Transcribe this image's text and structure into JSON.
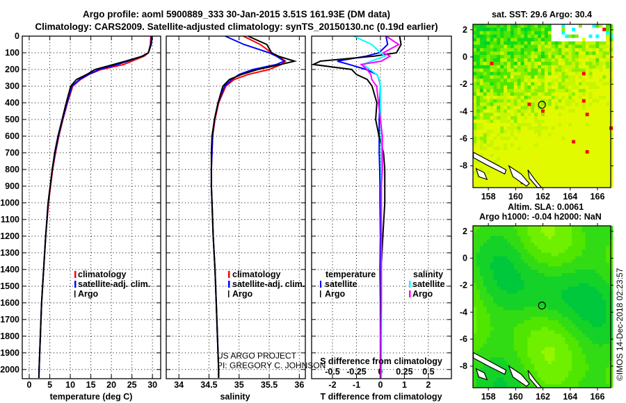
{
  "title": {
    "line1": "Argo profile: aoml 5900889_333 30-Jan-2015 3.51S 161.93E (DM data)",
    "line2": "Climatology: CARS2009. Satellite-adjusted climatology: synTS_20150130.nc (0.19d earlier)"
  },
  "annotations": {
    "project": "US ARGO PROJECT",
    "pi": "PI: GREGORY C. JOHNSON",
    "credit": "©IMOS 14-Dec-2018 02:23:57"
  },
  "colors": {
    "climatology": "#ff0000",
    "satellite": "#0000ff",
    "argo": "#000000",
    "sal_satellite": "#00ffff",
    "sal_argo": "#ff00ff"
  },
  "chart_data": [
    {
      "type": "line",
      "name": "temperature-panel",
      "xlabel": "temperature (deg C)",
      "ylabel": "",
      "xlim": [
        -1.7,
        32
      ],
      "ylim": [
        0,
        2055
      ],
      "y_inverted": true,
      "xticks": [
        "0",
        "5",
        "10",
        "15",
        "20",
        "25",
        "30"
      ],
      "yticks": [
        "0",
        "100",
        "200",
        "300",
        "400",
        "500",
        "600",
        "700",
        "800",
        "900",
        "1000",
        "1100",
        "1200",
        "1300",
        "1400",
        "1500",
        "1600",
        "1700",
        "1800",
        "1900",
        "2000"
      ],
      "grid": true,
      "legend": {
        "placement": "lower-middle",
        "entries": [
          "climatology",
          "satellite-adj. clim.",
          "Argo"
        ]
      },
      "depth": [
        0,
        50,
        100,
        120,
        150,
        170,
        200,
        230,
        260,
        300,
        400,
        500,
        600,
        700,
        800,
        900,
        1000,
        1200,
        1400,
        1600,
        1800,
        2000,
        2050
      ],
      "series": [
        {
          "name": "climatology",
          "color": "#ff0000",
          "values": [
            29.6,
            29.5,
            29.0,
            28.0,
            25.0,
            23.0,
            17.5,
            14.5,
            12.5,
            10.6,
            9.3,
            8.2,
            7.2,
            6.4,
            5.7,
            5.2,
            4.7,
            4.0,
            3.5,
            3.0,
            2.7,
            2.4,
            2.35
          ]
        },
        {
          "name": "satellite-adj. clim.",
          "color": "#0000ff",
          "values": [
            29.8,
            29.6,
            29.0,
            27.5,
            24.0,
            21.5,
            17.0,
            14.5,
            12.2,
            10.4,
            9.2,
            8.1,
            7.1,
            6.3,
            5.6,
            5.1,
            4.6,
            4.0,
            3.5,
            3.0,
            2.7,
            2.4,
            2.35
          ]
        },
        {
          "name": "Argo",
          "color": "#000000",
          "values": [
            29.9,
            29.7,
            29.0,
            27.6,
            23.5,
            20.5,
            16.0,
            14.0,
            11.5,
            10.1,
            9.0,
            8.0,
            7.0,
            6.2,
            5.6,
            5.1,
            4.6,
            4.0,
            3.5,
            3.0,
            2.7,
            2.4,
            2.35
          ]
        }
      ]
    },
    {
      "type": "line",
      "name": "salinity-panel",
      "xlabel": "salinity",
      "xlim": [
        33.79,
        36.1
      ],
      "ylim": [
        0,
        2055
      ],
      "y_inverted": true,
      "xticks": [
        "34",
        "34.5",
        "35",
        "35.5",
        "36"
      ],
      "grid": true,
      "legend": {
        "placement": "lower-right",
        "entries": [
          "climatology",
          "satellite-adj. clim.",
          "Argo"
        ]
      },
      "depth": [
        0,
        50,
        100,
        120,
        150,
        170,
        200,
        230,
        260,
        300,
        400,
        500,
        600,
        700,
        800,
        900,
        1000,
        1200,
        1400,
        1600,
        1800,
        2000,
        2050
      ],
      "series": [
        {
          "name": "climatology",
          "color": "#ff0000",
          "values": [
            35.07,
            35.35,
            35.54,
            35.65,
            35.77,
            35.7,
            35.5,
            35.15,
            34.92,
            34.78,
            34.66,
            34.6,
            34.56,
            34.55,
            34.54,
            34.54,
            34.55,
            34.57,
            34.6,
            34.62,
            34.64,
            34.66,
            34.66
          ]
        },
        {
          "name": "satellite-adj. clim.",
          "color": "#0000ff",
          "values": [
            34.77,
            35.08,
            35.5,
            35.62,
            35.75,
            35.62,
            35.23,
            35.0,
            34.88,
            34.76,
            34.65,
            34.59,
            34.56,
            34.55,
            34.54,
            34.54,
            34.55,
            34.57,
            34.6,
            34.62,
            34.64,
            34.66,
            34.66
          ]
        },
        {
          "name": "Argo",
          "color": "#000000",
          "values": [
            35.15,
            35.46,
            35.54,
            35.65,
            35.92,
            35.69,
            35.31,
            35.04,
            34.84,
            34.73,
            34.65,
            34.59,
            34.55,
            34.54,
            34.54,
            34.54,
            34.55,
            34.57,
            34.6,
            34.62,
            34.64,
            34.66,
            34.66
          ]
        }
      ]
    },
    {
      "type": "line",
      "name": "difference-panel",
      "xlabel": "T difference from climatology",
      "x2label": "S difference from climatology",
      "xlim": [
        -2.87,
        2.96
      ],
      "x2_scale": 0.25,
      "ylim": [
        0,
        2055
      ],
      "y_inverted": true,
      "xticks": [
        "-2",
        "-1",
        "0",
        "1",
        "2"
      ],
      "x2ticks": [
        "-0.5",
        "-0.25",
        "0",
        "0.25",
        "0.5"
      ],
      "grid": true,
      "legend": {
        "placement": "lower",
        "temperature_heading": "temperature",
        "salinity_heading": "salinity",
        "temperature_entries": [
          "satellite",
          "Argo"
        ],
        "salinity_entries": [
          "satellite",
          "Argo"
        ]
      },
      "depth": [
        0,
        50,
        100,
        120,
        150,
        170,
        200,
        230,
        260,
        300,
        400,
        500,
        600,
        700,
        800,
        900,
        1000,
        1200,
        1400,
        1600,
        1800,
        2000,
        2050
      ],
      "series": [
        {
          "name": "T satellite",
          "axis": "T",
          "color": "#0000ff",
          "values": [
            0.23,
            0.3,
            -0.06,
            -0.6,
            -1.8,
            -1.3,
            -0.6,
            -0.15,
            -0.05,
            0.0,
            -0.03,
            -0.05,
            -0.05,
            -0.05,
            -0.03,
            -0.02,
            -0.02,
            0.0,
            -0.02,
            0.0,
            0.0,
            0.0,
            0.0
          ]
        },
        {
          "name": "T Argo",
          "axis": "T",
          "color": "#000000",
          "values": [
            0.8,
            0.86,
            0.67,
            -0.25,
            -2.5,
            -2.8,
            -1.2,
            -1.0,
            -0.55,
            -0.35,
            -0.15,
            -0.2,
            -0.06,
            0.13,
            0.18,
            0.18,
            0.18,
            0.1,
            0.03,
            0.02,
            0.02,
            0.0,
            0.0
          ]
        },
        {
          "name": "S satellite",
          "axis": "S",
          "color": "#00ffff",
          "values": [
            -0.28,
            -0.09,
            0.0,
            0.05,
            -0.1,
            -0.18,
            -0.11,
            -0.04,
            -0.01,
            0.0,
            0.0,
            0.005,
            0.01,
            0.01,
            0.01,
            0.01,
            0.01,
            0.01,
            0.01,
            0.01,
            0.01,
            0.01,
            0.01
          ]
        },
        {
          "name": "S Argo",
          "axis": "S",
          "color": "#ff00ff",
          "values": [
            0.06,
            0.19,
            0.03,
            0.1,
            0.01,
            -0.2,
            -0.14,
            -0.1,
            -0.09,
            -0.04,
            -0.02,
            0.0,
            0.02,
            0.02,
            0.02,
            0.01,
            0.01,
            0.01,
            0.01,
            0.01,
            0.005,
            0.005,
            0.005
          ]
        }
      ]
    },
    {
      "type": "heatmap",
      "name": "sst-map",
      "title": "sat. SST: 29.6 Argo: 30.4",
      "xlim": [
        156.87,
        166.97
      ],
      "ylim": [
        -9.6,
        2.4
      ],
      "xticks": [
        "158",
        "160",
        "162",
        "164",
        "166"
      ],
      "yticks": [
        "2",
        "0",
        "-2",
        "-4",
        "-6",
        "-8"
      ],
      "marker": {
        "lon": 161.93,
        "lat": -3.51
      }
    },
    {
      "type": "heatmap",
      "name": "sla-map",
      "title": "Altim. SLA: 0.0061",
      "subtitle": "Argo h1000: -0.04 h2000: NaN",
      "xlim": [
        156.87,
        166.97
      ],
      "ylim": [
        -9.6,
        2.4
      ],
      "xticks": [
        "158",
        "160",
        "162",
        "164",
        "166"
      ],
      "yticks": [
        "2",
        "0",
        "-2",
        "-4",
        "-6",
        "-8"
      ],
      "marker": {
        "lon": 161.93,
        "lat": -3.51
      }
    }
  ]
}
